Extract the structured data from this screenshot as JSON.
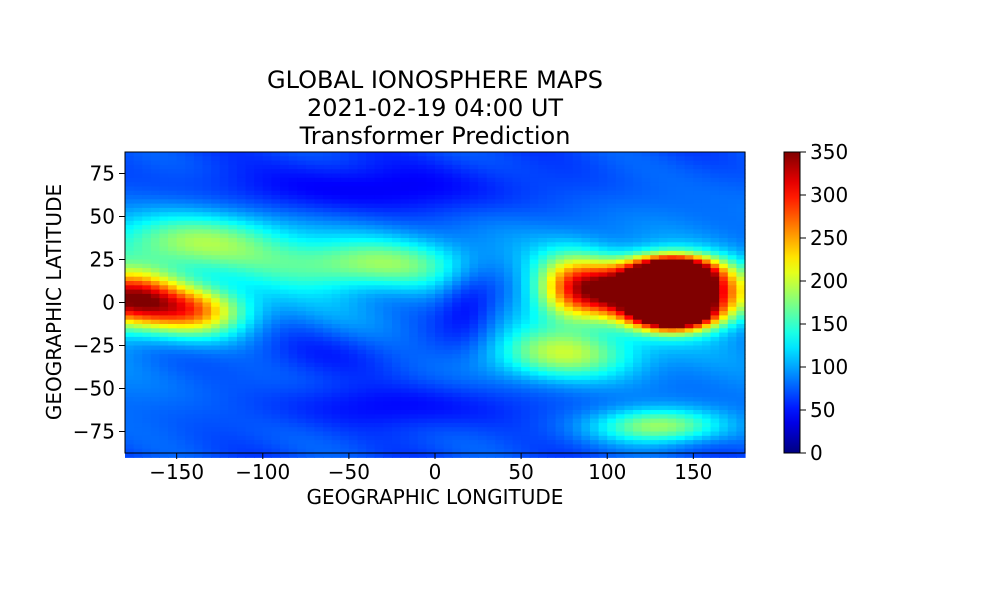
{
  "chart_data": {
    "type": "heatmap",
    "title": [
      "GLOBAL IONOSPHERE MAPS",
      "2021-02-19 04:00 UT",
      "Transformer Prediction"
    ],
    "xlabel": "GEOGRAPHIC LONGITUDE",
    "ylabel": "GEOGRAPHIC LATITUDE",
    "xlim": [
      -180,
      180
    ],
    "ylim": [
      -87.5,
      87.5
    ],
    "xticks": [
      -150,
      -100,
      -50,
      0,
      50,
      100,
      150
    ],
    "yticks": [
      -75,
      -50,
      -25,
      0,
      25,
      50,
      75
    ],
    "grid_lon_step": 5,
    "grid_lat_step": 2.5,
    "colorscale": "jet",
    "colorbar": {
      "range": [
        0,
        350
      ],
      "ticks": [
        0,
        50,
        100,
        150,
        200,
        250,
        300,
        350
      ],
      "label": ""
    },
    "features": [
      {
        "lon": -180,
        "lat": 2,
        "value": 230,
        "sigma_lon": 22,
        "sigma_lat": 11
      },
      {
        "lon": -140,
        "lat": -5,
        "value": 150,
        "sigma_lon": 22,
        "sigma_lat": 10
      },
      {
        "lon": 138,
        "lat": 18,
        "value": 335,
        "sigma_lon": 15,
        "sigma_lat": 6
      },
      {
        "lon": 138,
        "lat": -7,
        "value": 330,
        "sigma_lon": 15,
        "sigma_lat": 6
      },
      {
        "lon": 115,
        "lat": 7,
        "value": 250,
        "sigma_lon": 22,
        "sigma_lat": 11
      },
      {
        "lon": 150,
        "lat": 5,
        "value": 260,
        "sigma_lon": 22,
        "sigma_lat": 11
      },
      {
        "lon": 80,
        "lat": 8,
        "value": 150,
        "sigma_lon": 16,
        "sigma_lat": 14
      },
      {
        "lon": 75,
        "lat": -30,
        "value": 100,
        "sigma_lon": 30,
        "sigma_lat": 10
      },
      {
        "lon": 130,
        "lat": -72,
        "value": 110,
        "sigma_lon": 25,
        "sigma_lat": 7
      },
      {
        "lon": -140,
        "lat": 35,
        "value": 95,
        "sigma_lon": 40,
        "sigma_lat": 12
      },
      {
        "lon": -40,
        "lat": 22,
        "value": 90,
        "sigma_lon": 40,
        "sigma_lat": 10
      },
      {
        "lon": 20,
        "lat": 0,
        "value": -55,
        "sigma_lon": 14,
        "sigma_lat": 14
      },
      {
        "lon": -40,
        "lat": 65,
        "value": -40,
        "sigma_lon": 70,
        "sigma_lat": 12
      },
      {
        "lon": -60,
        "lat": -30,
        "value": -30,
        "sigma_lon": 60,
        "sigma_lat": 12
      },
      {
        "lon": -20,
        "lat": -60,
        "value": -35,
        "sigma_lon": 60,
        "sigma_lat": 10
      }
    ],
    "background": 70,
    "equator_bias": 25
  }
}
